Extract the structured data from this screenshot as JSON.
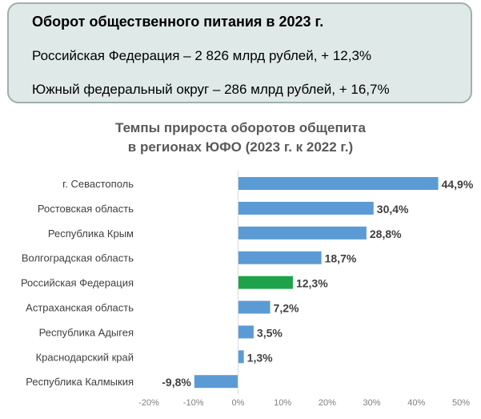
{
  "info": {
    "title": "Оборот общественного питания в 2023 г.",
    "line1": "Российская Федерация – 2 826 млрд рублей, + 12,3%",
    "line2": "Южный федеральный округ – 286 млрд рублей, + 16,7%"
  },
  "chart_data": {
    "type": "bar",
    "orientation": "horizontal",
    "title_line1": "Темпы прироста оборотов общепита",
    "title_line2": "в регионах ЮФО (2023 г. к 2022 г.)",
    "categories": [
      "г. Севастополь",
      "Ростовская область",
      "Республика Крым",
      "Волгоградская область",
      "Российская Федерация",
      "Астраханская область",
      "Республика Адыгея",
      "Краснодарский край",
      "Республика Калмыкия"
    ],
    "values": [
      44.9,
      30.4,
      28.8,
      18.7,
      12.3,
      7.2,
      3.5,
      1.3,
      -9.8
    ],
    "value_labels": [
      "44,9%",
      "30,4%",
      "28,8%",
      "18,7%",
      "12,3%",
      "7,2%",
      "3,5%",
      "1,3%",
      "-9,8%"
    ],
    "xlim": [
      -20,
      50
    ],
    "xticks": [
      -20,
      -10,
      0,
      10,
      20,
      30,
      40,
      50
    ],
    "xtick_labels": [
      "-20%",
      "-10%",
      "0%",
      "10%",
      "20%",
      "30%",
      "40%",
      "50%"
    ],
    "highlight_index": 4,
    "colors": {
      "bar": "#5b9bd5",
      "highlight": "#1fa34a",
      "axis_text": "#7f7f7f",
      "category_text": "#404040",
      "value_text": "#404040"
    },
    "grid": false
  }
}
